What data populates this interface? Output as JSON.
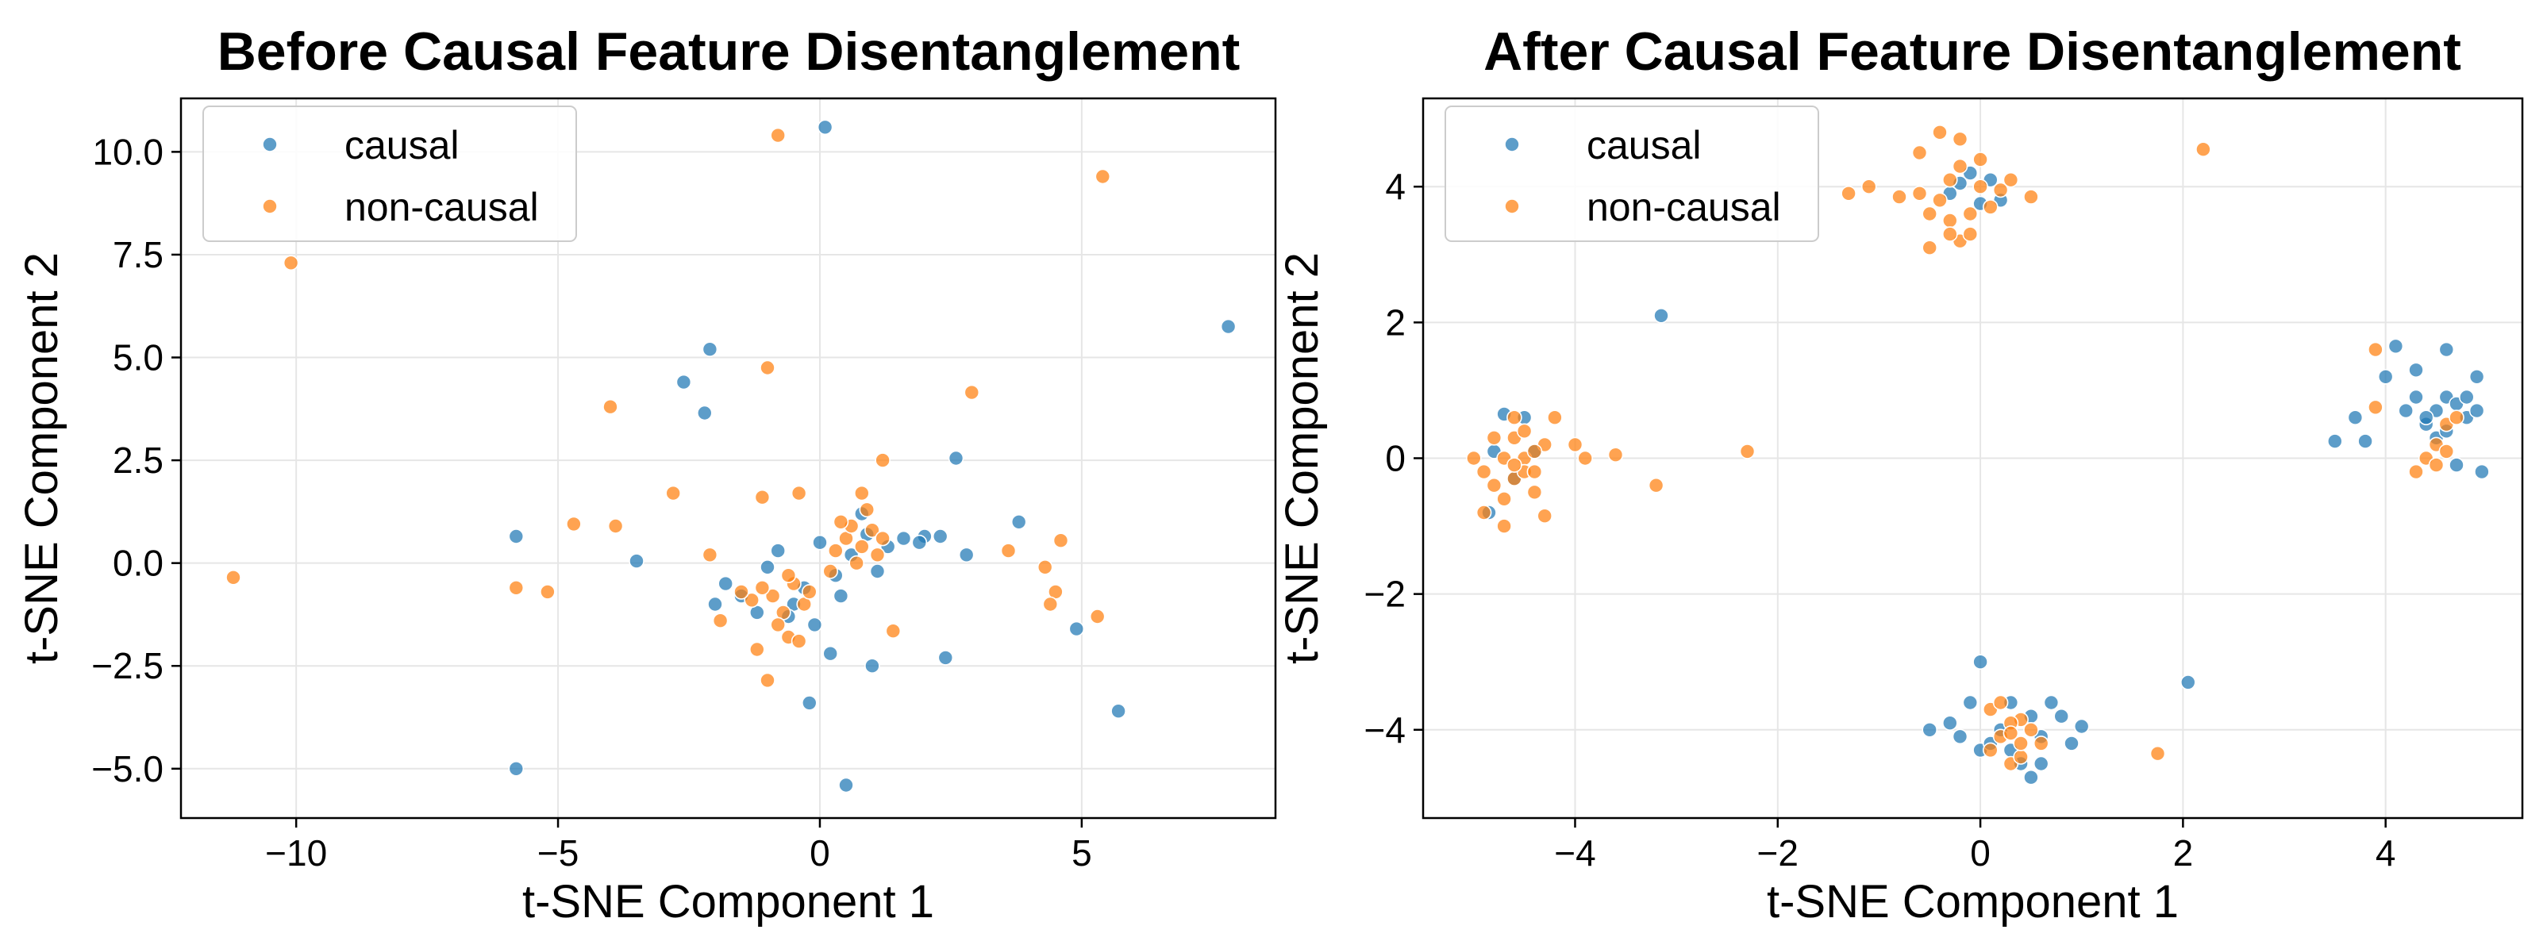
{
  "colors": {
    "causal": "#1f77b4",
    "non_causal": "#ff7f0e"
  },
  "chart_data": [
    {
      "type": "scatter",
      "title": "Before Causal Feature Disentanglement",
      "xlabel": "t-SNE Component 1",
      "ylabel": "t-SNE Component 2",
      "xlim": [
        -12.2,
        8.7
      ],
      "ylim": [
        -6.2,
        11.3
      ],
      "xticks": [
        -10,
        -5,
        0,
        5
      ],
      "xtick_labels": [
        "−10",
        "−5",
        "0",
        "5"
      ],
      "yticks": [
        -5.0,
        -2.5,
        0.0,
        2.5,
        5.0,
        7.5,
        10.0
      ],
      "ytick_labels": [
        "−5.0",
        "−2.5",
        "0.0",
        "2.5",
        "5.0",
        "7.5",
        "10.0"
      ],
      "grid": true,
      "legend_position": "top-left",
      "series": [
        {
          "name": "causal",
          "color": "#1f77b4",
          "points": [
            [
              0.1,
              10.6
            ],
            [
              7.8,
              5.75
            ],
            [
              -2.1,
              5.2
            ],
            [
              -2.6,
              4.4
            ],
            [
              -2.2,
              3.65
            ],
            [
              -5.8,
              0.65
            ],
            [
              -3.5,
              0.05
            ],
            [
              2.6,
              2.55
            ],
            [
              3.8,
              1.0
            ],
            [
              2.0,
              0.65
            ],
            [
              2.3,
              0.65
            ],
            [
              1.9,
              0.5
            ],
            [
              2.8,
              0.2
            ],
            [
              4.9,
              -1.6
            ],
            [
              2.4,
              -2.3
            ],
            [
              0.2,
              -2.2
            ],
            [
              1.0,
              -2.5
            ],
            [
              -0.2,
              -3.4
            ],
            [
              5.7,
              -3.6
            ],
            [
              -5.8,
              -5.0
            ],
            [
              0.5,
              -5.4
            ],
            [
              -2.0,
              -1.0
            ],
            [
              -1.5,
              -0.8
            ],
            [
              -1.2,
              -1.2
            ],
            [
              -0.5,
              -1.0
            ],
            [
              -0.8,
              0.3
            ],
            [
              0.3,
              -0.3
            ],
            [
              0.6,
              0.2
            ],
            [
              0.9,
              0.7
            ],
            [
              1.3,
              0.4
            ],
            [
              -0.3,
              -0.6
            ],
            [
              -1.0,
              -0.1
            ],
            [
              0.0,
              0.5
            ],
            [
              0.8,
              1.2
            ],
            [
              -0.6,
              -1.3
            ],
            [
              1.6,
              0.6
            ],
            [
              0.4,
              -0.8
            ],
            [
              -1.8,
              -0.5
            ],
            [
              1.1,
              -0.2
            ],
            [
              -0.1,
              -1.5
            ]
          ]
        },
        {
          "name": "non-causal",
          "color": "#ff7f0e",
          "points": [
            [
              -0.8,
              10.4
            ],
            [
              5.4,
              9.4
            ],
            [
              -10.1,
              7.3
            ],
            [
              -1.0,
              4.75
            ],
            [
              2.9,
              4.15
            ],
            [
              -4.0,
              3.8
            ],
            [
              -2.8,
              1.7
            ],
            [
              -1.1,
              1.6
            ],
            [
              -0.4,
              1.7
            ],
            [
              1.2,
              2.5
            ],
            [
              -4.7,
              0.95
            ],
            [
              -3.9,
              0.9
            ],
            [
              -2.1,
              0.2
            ],
            [
              -5.2,
              -0.7
            ],
            [
              -5.8,
              -0.6
            ],
            [
              -11.2,
              -0.35
            ],
            [
              3.6,
              0.3
            ],
            [
              4.6,
              0.55
            ],
            [
              4.3,
              -0.1
            ],
            [
              4.5,
              -0.7
            ],
            [
              4.4,
              -1.0
            ],
            [
              5.3,
              -1.3
            ],
            [
              1.4,
              -1.65
            ],
            [
              -1.9,
              -1.4
            ],
            [
              -1.2,
              -2.1
            ],
            [
              -0.6,
              -1.8
            ],
            [
              -0.4,
              -1.9
            ],
            [
              -1.0,
              -2.85
            ],
            [
              -0.3,
              -1.0
            ],
            [
              -0.9,
              -0.8
            ],
            [
              -0.5,
              -0.5
            ],
            [
              -0.7,
              -1.2
            ],
            [
              -1.1,
              -0.6
            ],
            [
              -0.2,
              -0.7
            ],
            [
              -0.6,
              -0.3
            ],
            [
              -1.3,
              -0.9
            ],
            [
              0.5,
              0.6
            ],
            [
              0.8,
              0.4
            ],
            [
              1.0,
              0.8
            ],
            [
              0.7,
              0.0
            ],
            [
              1.2,
              0.6
            ],
            [
              0.9,
              1.3
            ],
            [
              0.6,
              0.9
            ],
            [
              0.3,
              0.3
            ],
            [
              1.1,
              0.2
            ],
            [
              0.4,
              1.0
            ],
            [
              0.8,
              1.7
            ],
            [
              -0.8,
              -1.5
            ],
            [
              -1.5,
              -0.7
            ],
            [
              0.2,
              -0.2
            ]
          ]
        }
      ]
    },
    {
      "type": "scatter",
      "title": "After Causal Feature Disentanglement",
      "xlabel": "t-SNE Component 1",
      "ylabel": "t-SNE Component 2",
      "xlim": [
        -5.5,
        5.35
      ],
      "ylim": [
        -5.3,
        5.3
      ],
      "xticks": [
        -4,
        -2,
        0,
        2,
        4
      ],
      "xtick_labels": [
        "−4",
        "−2",
        "0",
        "2",
        "4"
      ],
      "yticks": [
        -4,
        -2,
        0,
        2,
        4
      ],
      "ytick_labels": [
        "−4",
        "−2",
        "0",
        "2",
        "4"
      ],
      "grid": true,
      "legend_position": "top-left",
      "series": [
        {
          "name": "causal",
          "color": "#1f77b4",
          "points": [
            [
              -3.15,
              2.1
            ],
            [
              2.05,
              -3.3
            ],
            [
              0.0,
              -3.0
            ],
            [
              4.1,
              1.65
            ],
            [
              4.6,
              1.6
            ],
            [
              4.0,
              1.2
            ],
            [
              4.3,
              1.3
            ],
            [
              4.9,
              1.2
            ],
            [
              3.5,
              0.25
            ],
            [
              3.7,
              0.6
            ],
            [
              3.8,
              0.25
            ],
            [
              4.7,
              -0.1
            ],
            [
              4.95,
              -0.2
            ],
            [
              4.5,
              0.3
            ],
            [
              4.2,
              0.7
            ],
            [
              4.4,
              0.5
            ],
            [
              4.6,
              0.9
            ],
            [
              4.8,
              0.6
            ],
            [
              4.3,
              0.9
            ],
            [
              4.5,
              0.7
            ],
            [
              4.7,
              0.8
            ],
            [
              4.6,
              0.4
            ],
            [
              4.8,
              0.9
            ],
            [
              4.4,
              0.6
            ],
            [
              4.9,
              0.7
            ],
            [
              -0.2,
              4.05
            ],
            [
              0.0,
              3.75
            ],
            [
              -0.3,
              3.9
            ],
            [
              0.1,
              4.1
            ],
            [
              -0.1,
              4.2
            ],
            [
              0.2,
              3.8
            ],
            [
              -4.85,
              -0.8
            ],
            [
              -4.7,
              0.65
            ],
            [
              -4.5,
              0.6
            ],
            [
              -4.6,
              -0.3
            ],
            [
              -4.4,
              0.1
            ],
            [
              -4.8,
              0.1
            ],
            [
              0.5,
              -4.7
            ],
            [
              0.4,
              -4.5
            ],
            [
              0.0,
              -4.3
            ],
            [
              -0.1,
              -3.6
            ],
            [
              0.3,
              -3.6
            ],
            [
              -0.2,
              -4.1
            ],
            [
              0.6,
              -4.5
            ],
            [
              0.9,
              -4.2
            ],
            [
              1.0,
              -3.95
            ],
            [
              0.2,
              -4.0
            ],
            [
              0.5,
              -3.8
            ],
            [
              -0.3,
              -3.9
            ],
            [
              0.7,
              -3.6
            ],
            [
              0.1,
              -4.2
            ],
            [
              0.8,
              -3.8
            ],
            [
              -0.5,
              -4.0
            ],
            [
              0.3,
              -4.3
            ],
            [
              0.6,
              -4.1
            ]
          ]
        },
        {
          "name": "non-causal",
          "color": "#ff7f0e",
          "points": [
            [
              2.2,
              4.55
            ],
            [
              -0.4,
              4.8
            ],
            [
              -0.6,
              4.5
            ],
            [
              -0.2,
              4.7
            ],
            [
              -1.3,
              3.9
            ],
            [
              -1.1,
              4.0
            ],
            [
              0.2,
              3.95
            ],
            [
              0.5,
              3.85
            ],
            [
              -0.2,
              3.2
            ],
            [
              -0.5,
              3.1
            ],
            [
              -0.3,
              3.5
            ],
            [
              -0.1,
              3.6
            ],
            [
              -0.4,
              3.8
            ],
            [
              0.0,
              4.0
            ],
            [
              -0.2,
              4.3
            ],
            [
              -0.6,
              3.9
            ],
            [
              0.1,
              3.7
            ],
            [
              -0.3,
              4.1
            ],
            [
              -0.5,
              3.6
            ],
            [
              0.3,
              4.1
            ],
            [
              -0.8,
              3.85
            ],
            [
              -0.1,
              3.3
            ],
            [
              -0.3,
              3.3
            ],
            [
              0.0,
              4.4
            ],
            [
              -2.3,
              0.1
            ],
            [
              -3.6,
              0.05
            ],
            [
              -3.2,
              -0.4
            ],
            [
              -3.9,
              0.0
            ],
            [
              -4.0,
              0.2
            ],
            [
              -4.9,
              -0.8
            ],
            [
              -4.3,
              -0.85
            ],
            [
              -4.7,
              -1.0
            ],
            [
              -4.6,
              -0.3
            ],
            [
              -4.5,
              0.0
            ],
            [
              -4.8,
              0.3
            ],
            [
              -4.6,
              0.3
            ],
            [
              -4.4,
              -0.5
            ],
            [
              -4.7,
              0.0
            ],
            [
              -4.5,
              -0.2
            ],
            [
              -4.9,
              -0.2
            ],
            [
              -4.3,
              0.2
            ],
            [
              -4.6,
              0.6
            ],
            [
              -4.4,
              0.1
            ],
            [
              -4.8,
              -0.4
            ],
            [
              -4.5,
              0.4
            ],
            [
              -4.7,
              -0.6
            ],
            [
              -4.2,
              0.6
            ],
            [
              -5.0,
              0.0
            ],
            [
              -4.4,
              -0.2
            ],
            [
              -4.6,
              -0.1
            ],
            [
              1.75,
              -4.35
            ],
            [
              0.3,
              -4.5
            ],
            [
              0.4,
              -4.4
            ],
            [
              0.1,
              -3.7
            ],
            [
              0.4,
              -3.85
            ],
            [
              0.2,
              -4.1
            ],
            [
              0.5,
              -4.0
            ],
            [
              0.3,
              -3.9
            ],
            [
              0.6,
              -4.2
            ],
            [
              0.1,
              -4.3
            ],
            [
              0.4,
              -4.2
            ],
            [
              0.2,
              -3.6
            ],
            [
              0.3,
              -4.05
            ],
            [
              3.9,
              1.6
            ],
            [
              3.9,
              0.75
            ],
            [
              4.4,
              0.0
            ],
            [
              4.5,
              -0.1
            ],
            [
              4.6,
              0.5
            ],
            [
              4.7,
              0.6
            ],
            [
              4.3,
              -0.2
            ],
            [
              4.5,
              0.2
            ],
            [
              4.6,
              0.1
            ]
          ]
        }
      ]
    }
  ]
}
